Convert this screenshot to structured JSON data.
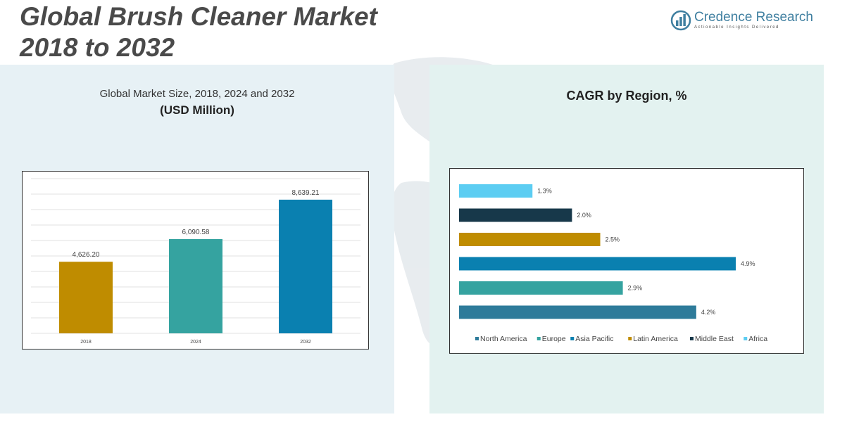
{
  "header": {
    "title_line1": "Global Brush Cleaner Market",
    "title_line2": "2018 to 2032"
  },
  "logo": {
    "name": "Credence Research",
    "tagline": "Actionable Insights Delivered",
    "icon": "bar-chart-circle-icon",
    "color": "#3f7fa0"
  },
  "left_panel": {
    "title": "Global Market Size, 2018, 2024 and 2032",
    "subtitle": "(USD Million)"
  },
  "right_panel": {
    "title": "CAGR by Region, %"
  },
  "chart_data": [
    {
      "type": "bar",
      "title": "Global Market Size, 2018, 2024 and 2032",
      "ylabel": "(USD Million)",
      "categories": [
        "2018",
        "2024",
        "2032"
      ],
      "values": [
        4626.2,
        6090.58,
        8639.21
      ],
      "value_labels": [
        "4,626.20",
        "6,090.58",
        "8,639.21"
      ],
      "colors": [
        "#bf8c00",
        "#35a3a0",
        "#0a80b0"
      ],
      "ylim": [
        0,
        10000
      ],
      "grid": true
    },
    {
      "type": "bar",
      "orientation": "horizontal",
      "title": "CAGR by Region, %",
      "categories": [
        "North America",
        "Europe",
        "Asia Pacific",
        "Latin America",
        "Middle East",
        "Africa"
      ],
      "values": [
        4.2,
        2.9,
        4.9,
        2.5,
        2.0,
        1.3
      ],
      "value_labels": [
        "4.2%",
        "2.9%",
        "4.9%",
        "2.5%",
        "2.0%",
        "1.3%"
      ],
      "colors": [
        "#2e7b9a",
        "#35a3a0",
        "#0a80b0",
        "#bf8c00",
        "#17384a",
        "#5ccdf2"
      ],
      "legend": [
        "North America",
        "Europe",
        "Asia Pacific",
        "Latin America",
        "Middle East",
        "Africa"
      ],
      "legend_position": "bottom",
      "xlim": [
        0,
        5
      ]
    }
  ]
}
